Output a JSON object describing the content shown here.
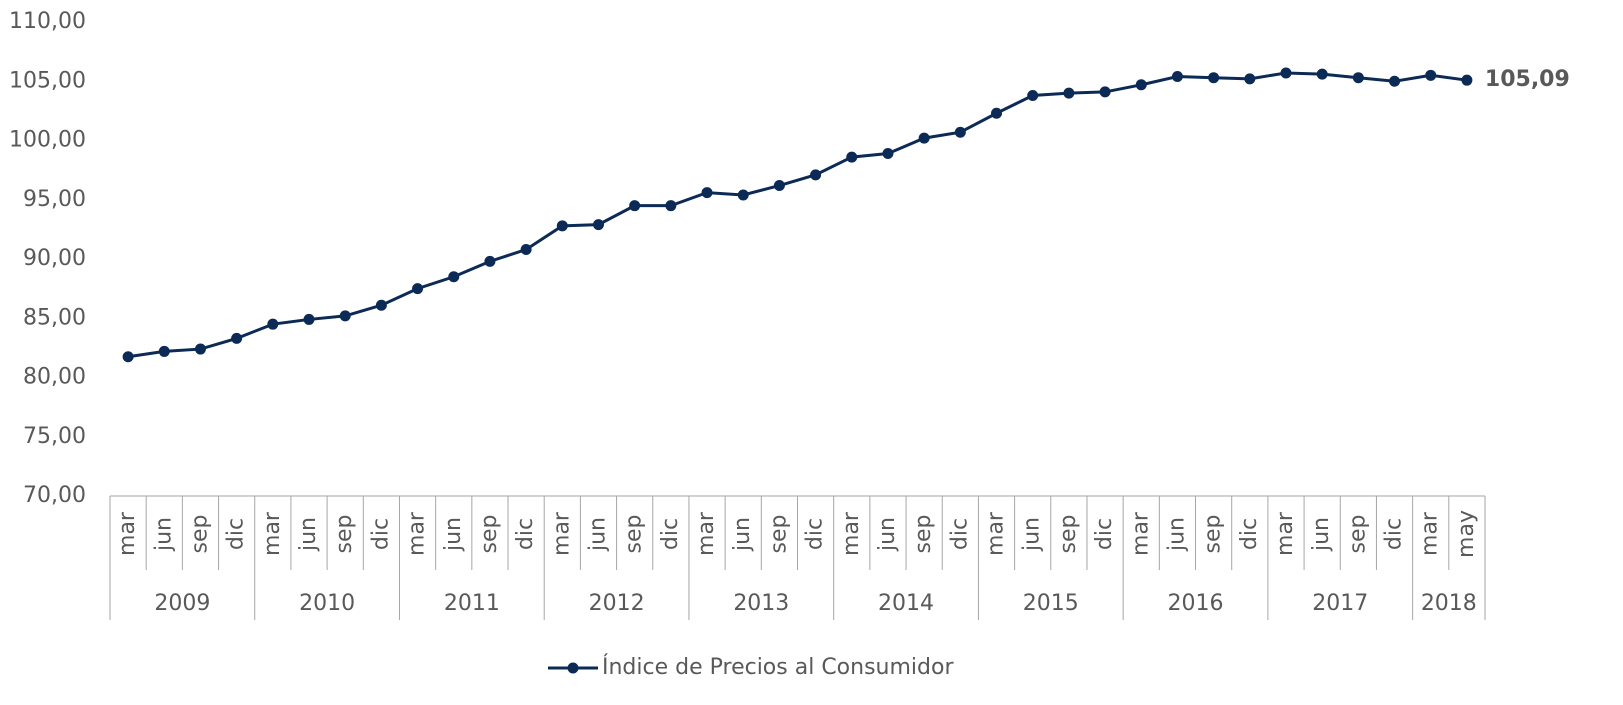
{
  "chart_data": {
    "type": "line",
    "categories": [
      {
        "label": "mar",
        "group": "2009"
      },
      {
        "label": "jun",
        "group": "2009"
      },
      {
        "label": "sep",
        "group": "2009"
      },
      {
        "label": "dic",
        "group": "2009"
      },
      {
        "label": "mar",
        "group": "2010"
      },
      {
        "label": "jun",
        "group": "2010"
      },
      {
        "label": "sep",
        "group": "2010"
      },
      {
        "label": "dic",
        "group": "2010"
      },
      {
        "label": "mar",
        "group": "2011"
      },
      {
        "label": "jun",
        "group": "2011"
      },
      {
        "label": "sep",
        "group": "2011"
      },
      {
        "label": "dic",
        "group": "2011"
      },
      {
        "label": "mar",
        "group": "2012"
      },
      {
        "label": "jun",
        "group": "2012"
      },
      {
        "label": "sep",
        "group": "2012"
      },
      {
        "label": "dic",
        "group": "2012"
      },
      {
        "label": "mar",
        "group": "2013"
      },
      {
        "label": "jun",
        "group": "2013"
      },
      {
        "label": "sep",
        "group": "2013"
      },
      {
        "label": "dic",
        "group": "2013"
      },
      {
        "label": "mar",
        "group": "2014"
      },
      {
        "label": "jun",
        "group": "2014"
      },
      {
        "label": "sep",
        "group": "2014"
      },
      {
        "label": "dic",
        "group": "2014"
      },
      {
        "label": "mar",
        "group": "2015"
      },
      {
        "label": "jun",
        "group": "2015"
      },
      {
        "label": "sep",
        "group": "2015"
      },
      {
        "label": "dic",
        "group": "2015"
      },
      {
        "label": "mar",
        "group": "2016"
      },
      {
        "label": "jun",
        "group": "2016"
      },
      {
        "label": "sep",
        "group": "2016"
      },
      {
        "label": "dic",
        "group": "2016"
      },
      {
        "label": "mar",
        "group": "2017"
      },
      {
        "label": "jun",
        "group": "2017"
      },
      {
        "label": "sep",
        "group": "2017"
      },
      {
        "label": "dic",
        "group": "2017"
      },
      {
        "label": "mar",
        "group": "2018"
      },
      {
        "label": "may",
        "group": "2018"
      }
    ],
    "series": [
      {
        "name": "Índice de Precios al Consumidor",
        "color": "#0c2a56",
        "values": [
          81.75,
          82.2,
          82.4,
          83.3,
          84.5,
          84.9,
          85.2,
          86.1,
          87.5,
          88.5,
          89.8,
          90.8,
          92.8,
          92.9,
          94.5,
          94.5,
          95.6,
          95.4,
          96.2,
          97.1,
          98.6,
          98.9,
          100.2,
          100.7,
          102.3,
          103.8,
          104.0,
          104.1,
          104.7,
          105.4,
          105.3,
          105.2,
          105.7,
          105.6,
          105.3,
          105.0,
          105.5,
          105.09
        ],
        "value_labels": [
          null,
          null,
          null,
          null,
          null,
          null,
          null,
          null,
          null,
          null,
          null,
          null,
          null,
          null,
          null,
          null,
          null,
          null,
          null,
          null,
          null,
          null,
          null,
          null,
          null,
          null,
          null,
          null,
          null,
          null,
          null,
          null,
          null,
          null,
          null,
          null,
          null,
          "105,09"
        ]
      }
    ],
    "ylim": [
      70,
      110
    ],
    "yticks": [
      {
        "value": 70,
        "label": "70,00"
      },
      {
        "value": 75,
        "label": "75,00"
      },
      {
        "value": 80,
        "label": "80,00"
      },
      {
        "value": 85,
        "label": "85,00"
      },
      {
        "value": 90,
        "label": "90,00"
      },
      {
        "value": 95,
        "label": "95,00"
      },
      {
        "value": 100,
        "label": "100,00"
      },
      {
        "value": 105,
        "label": "105,00"
      },
      {
        "value": 110,
        "label": "110,00"
      }
    ],
    "grid": false,
    "legend": "bottom"
  }
}
